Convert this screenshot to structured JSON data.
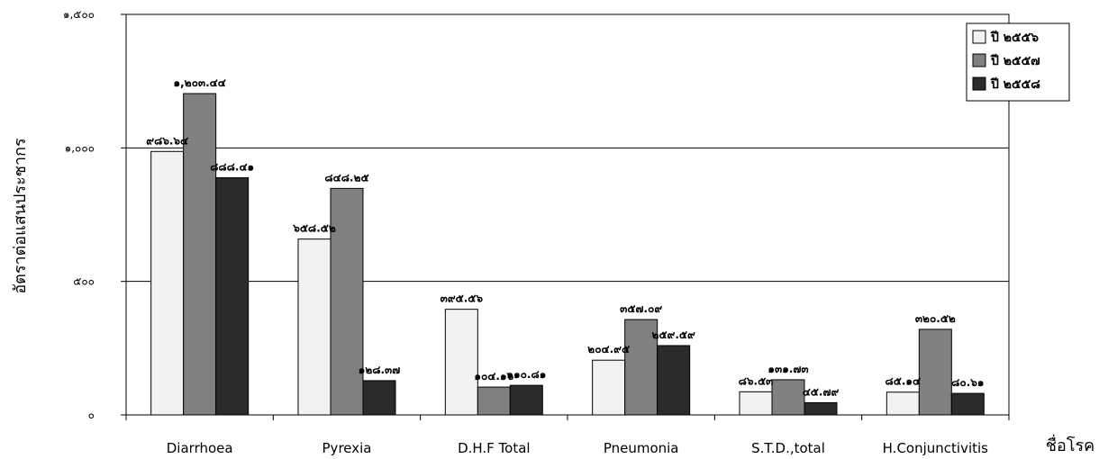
{
  "chart_data": {
    "type": "bar",
    "title": "",
    "xlabel": "ชื่อโรค",
    "ylabel": "อัตราต่อแสนประชากร",
    "ylim": [
      0,
      1500
    ],
    "yticks": [
      0,
      500,
      1000,
      1500
    ],
    "ytick_labels": [
      "๐",
      "๕๐๐",
      "๑,๐๐๐",
      "๑,๕๐๐"
    ],
    "grid": true,
    "legend_position": "top-right",
    "categories": [
      "Diarrhoea",
      "Pyrexia",
      "D.H.F Total",
      "Pneumonia",
      "S.T.D.,total",
      "H.Conjunctivitis"
    ],
    "series": [
      {
        "name": "ปี ๒๕๕๖",
        "color": "#f2f2f2",
        "values": [
          986.64,
          658.52,
          395.56,
          204.95,
          86.53,
          85.14
        ],
        "labels": [
          "๙๘๖.๖๔",
          "๖๕๘.๕๒",
          "๓๙๕.๕๖",
          "๒๐๔.๙๕",
          "๘๖.๕๓",
          "๘๕.๑๔"
        ]
      },
      {
        "name": "ปี ๒๕๕๗",
        "color": "#808080",
        "values": [
          1203.44,
          848.25,
          104.16,
          357.09,
          131.73,
          320.52
        ],
        "labels": [
          "๑,๒๐๓.๔๔",
          "๘๔๘.๒๕",
          "๑๐๔.๑๖",
          "๓๕๗.๐๙",
          "๑๓๑.๗๓",
          "๓๒๐.๕๒"
        ]
      },
      {
        "name": "ปี ๒๕๕๘",
        "color": "#2b2b2b",
        "values": [
          888.41,
          128.37,
          110.81,
          259.59,
          45.79,
          80.61
        ],
        "labels": [
          "๘๘๘.๔๑",
          "๑๒๘.๓๗",
          "๑๑๐.๘๑",
          "๒๕๙.๕๙",
          "๔๕.๗๙",
          "๘๐.๖๑"
        ]
      }
    ]
  }
}
